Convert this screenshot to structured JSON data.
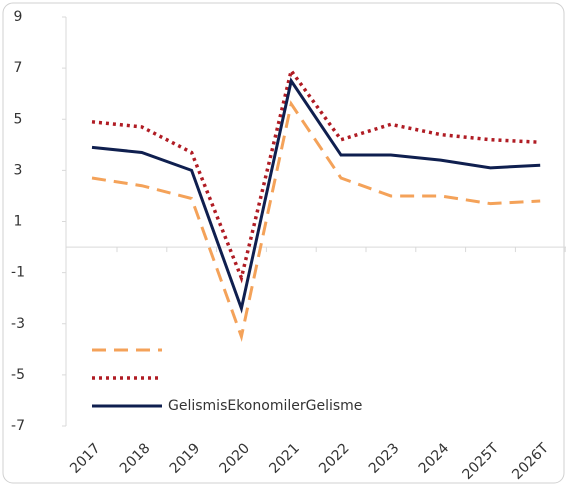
{
  "chart_data": {
    "type": "line",
    "categories": [
      "2017",
      "2018",
      "2019",
      "2020",
      "2021",
      "2022",
      "2023",
      "2024",
      "2025T",
      "2026T"
    ],
    "series": [
      {
        "color": "#f4a259",
        "dash": "dashed",
        "values": [
          2.7,
          2.4,
          1.9,
          -3.5,
          5.6,
          2.7,
          2.0,
          2.0,
          1.7,
          1.8
        ]
      },
      {
        "color": "#b01c24",
        "dash": "dotted",
        "values": [
          4.9,
          4.7,
          3.7,
          -1.2,
          6.9,
          4.2,
          4.8,
          4.4,
          4.2,
          4.1
        ]
      },
      {
        "name": "GelismisEkonomilerGelisme",
        "color": "#0f1f4f",
        "dash": "solid",
        "values": [
          3.9,
          3.7,
          3.0,
          -2.4,
          6.5,
          3.6,
          3.6,
          3.4,
          3.1,
          3.2
        ]
      }
    ],
    "ylim": [
      -7,
      9
    ],
    "yticks": [
      9,
      7,
      5,
      3,
      1,
      -1,
      -3,
      -5,
      -7
    ],
    "legend": "lower-left"
  }
}
